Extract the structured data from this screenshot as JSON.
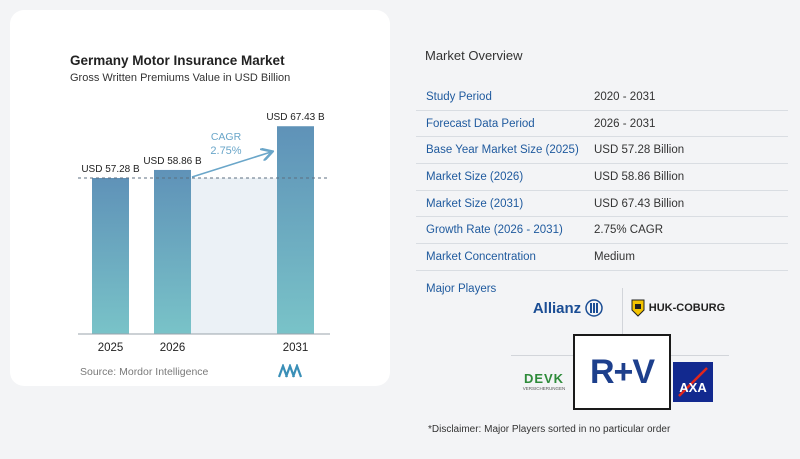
{
  "chart": {
    "title": "Germany Motor Insurance Market",
    "subtitle": "Gross Written Premiums Value in USD Billion",
    "source": "Source:  Mordor Intelligence",
    "cagr_label": "CAGR",
    "cagr_value": "2.75%"
  },
  "chart_data": {
    "type": "bar",
    "title": "Germany Motor Insurance Market",
    "subtitle": "Gross Written Premiums Value in USD Billion",
    "categories": [
      "2025",
      "2026",
      "2031"
    ],
    "values": [
      57.28,
      58.86,
      67.43
    ],
    "data_labels": [
      "USD 57.28 B",
      "USD 58.86 B",
      "USD 67.43 B"
    ],
    "annotation": "CAGR 2.75%",
    "ylabel": "",
    "xlabel": ""
  },
  "colors": {
    "bar_top": "#5f92b8",
    "bar_bottom": "#79c3c8",
    "projection_band": "#dde8f0",
    "label_blue": "#1f5a9e",
    "cagr_color": "#6aa6c9"
  },
  "overview": {
    "title": "Market Overview",
    "rows": [
      {
        "label": "Study Period",
        "value": "2020 - 2031"
      },
      {
        "label": "Forecast Data Period",
        "value": "2026 - 2031"
      },
      {
        "label": "Base Year Market Size (2025)",
        "value": "USD 57.28 Billion"
      },
      {
        "label": "Market Size (2026)",
        "value": "USD 58.86 Billion"
      },
      {
        "label": "Market Size (2031)",
        "value": "USD 67.43 Billion"
      },
      {
        "label": "Growth Rate (2026 - 2031)",
        "value": "2.75% CAGR"
      },
      {
        "label": "Market Concentration",
        "value": "Medium"
      }
    ]
  },
  "players": {
    "title": "Major Players",
    "logos": {
      "allianz": "Allianz",
      "huk": "HUK-COBURG",
      "devk": "DEVK",
      "devk_sub": "VERSICHERUNGEN",
      "rv": "R+V",
      "axa": "AXA"
    }
  },
  "disclaimer": "*Disclaimer: Major Players sorted in no particular order"
}
